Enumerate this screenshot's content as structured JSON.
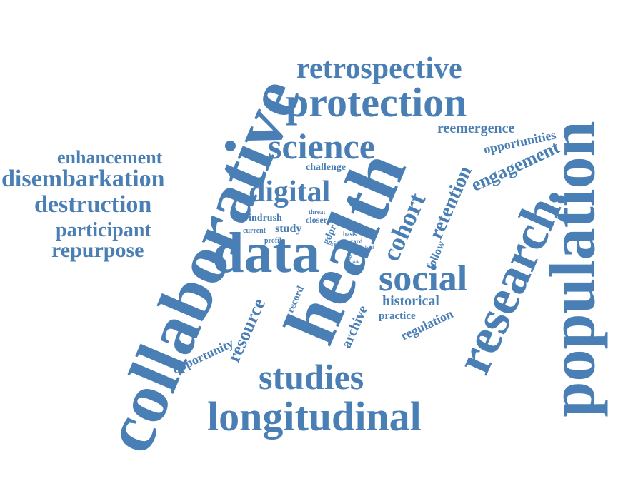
{
  "style": {
    "word_color": "#4a7fb5",
    "background": "#ffffff"
  },
  "words": {
    "collaborative": "collaborative",
    "health": "health",
    "population": "population",
    "research": "research.",
    "data": "data",
    "protection": "protection",
    "longitudinal": "longitudinal",
    "retrospective": "retrospective",
    "science": "science",
    "studies": "studies",
    "social": "social",
    "digital": "digital",
    "cohort": "cohort",
    "disembarkation": "disembarkation",
    "destruction": "destruction",
    "enhancement": "enhancement",
    "participant": "participant",
    "repurpose": "repurpose",
    "engagement": "engagement",
    "retention": "retention",
    "reemergence": "reemergence",
    "opportunities": "opportunities",
    "resource": "resource",
    "opportunity": "opportunity",
    "archive": "archive",
    "historical": "historical",
    "regulation": "regulation",
    "follow": "follow",
    "practice": "practice",
    "record": "record",
    "challenge": "challenge",
    "windrush": "windrush",
    "study": "study",
    "gdpr": "gdpr",
    "threat": "threat",
    "closer": "closer",
    "current": "current",
    "profile": "profile",
    "basis": "basis",
    "card": "card",
    "risk": "risk",
    "legal": "legal",
    "lead": "lead",
    "trials": "trials",
    "yes": "yes"
  }
}
